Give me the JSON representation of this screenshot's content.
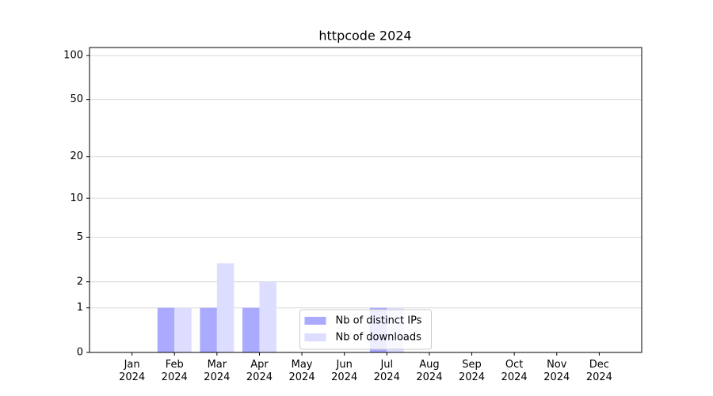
{
  "chart_data": {
    "type": "bar",
    "title": "httpcode 2024",
    "categories": [
      "Jan\n2024",
      "Feb\n2024",
      "Mar\n2024",
      "Apr\n2024",
      "May\n2024",
      "Jun\n2024",
      "Jul\n2024",
      "Aug\n2024",
      "Sep\n2024",
      "Oct\n2024",
      "Nov\n2024",
      "Dec\n2024"
    ],
    "series": [
      {
        "name": "Nb of distinct IPs",
        "color": "#aaaaff",
        "values": [
          0,
          1,
          1,
          1,
          0,
          0,
          1,
          0,
          0,
          0,
          0,
          0
        ]
      },
      {
        "name": "Nb of downloads",
        "color": "#ddddff",
        "values": [
          0,
          1,
          3,
          2,
          0,
          0,
          1,
          0,
          0,
          0,
          0,
          0
        ]
      }
    ],
    "yscale": "log1p",
    "ylim": [
      0,
      113.5
    ],
    "yticks": [
      0,
      1,
      2,
      5,
      10,
      20,
      50,
      100
    ],
    "grid": true,
    "legend": "lower center"
  }
}
